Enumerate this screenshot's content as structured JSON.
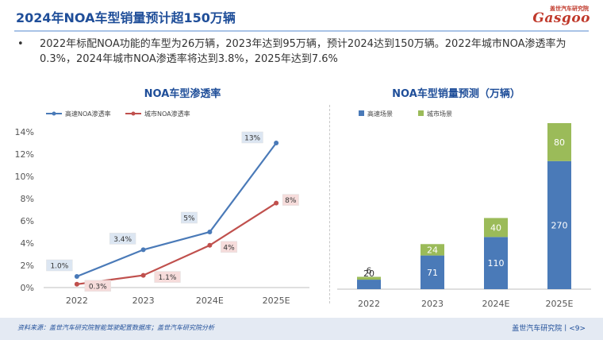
{
  "header": {
    "title": "2024年NOA车型销量预计超150万辆",
    "logo_cn": "盖世汽车研究院",
    "logo_en": "Gasgoo"
  },
  "bullet": {
    "symbol": "•",
    "text": "2022年标配NOA功能的车型为26万辆，2023年达到95万辆，预计2024达到150万辆。2022年城市NOA渗透率为0.3%，2024年城市NOA渗透率将达到3.8%，2025年达到7.6%"
  },
  "footer": {
    "source": "资料来源：盖世汽车研究院智能驾驶配置数据库；盖世汽车研究院分析",
    "page": "盖世汽车研究院丨<9>"
  },
  "colors": {
    "highway": "#4a7ab8",
    "city": "#c0504d",
    "city_bar": "#9bbb59",
    "title": "#1f4e99"
  },
  "chart_data": [
    {
      "type": "line",
      "title": "NOA车型渗透率",
      "categories": [
        "2022",
        "2023",
        "2024E",
        "2025E"
      ],
      "series": [
        {
          "name": "高速NOA渗透率",
          "values": [
            1.0,
            3.4,
            5.0,
            13.0
          ],
          "labels": [
            "1.0%",
            "3.4%",
            "5%",
            "13%"
          ]
        },
        {
          "name": "城市NOA渗透率",
          "values": [
            0.3,
            1.1,
            3.8,
            7.6
          ],
          "labels": [
            "0.3%",
            "1.1%",
            "4%",
            "8%"
          ]
        }
      ],
      "ylim": [
        0,
        14
      ],
      "yticks": [
        "0%",
        "2%",
        "4%",
        "6%",
        "8%",
        "10%",
        "12%",
        "14%"
      ],
      "legend": "top-left",
      "grid": false
    },
    {
      "type": "bar",
      "stacked": true,
      "title": "NOA车型销量预测（万辆）",
      "categories": [
        "2022",
        "2023",
        "2024E",
        "2025E"
      ],
      "series": [
        {
          "name": "高速场景",
          "values": [
            20,
            71,
            110,
            270
          ]
        },
        {
          "name": "城市场景",
          "values": [
            6,
            24,
            40,
            80
          ]
        }
      ],
      "legend": "top-left",
      "grid": false
    }
  ]
}
